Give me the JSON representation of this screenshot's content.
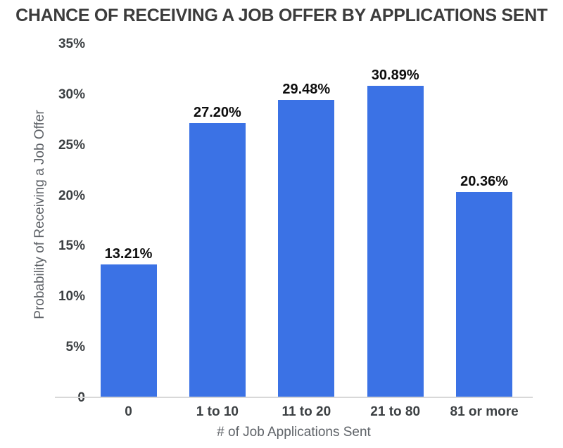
{
  "chart_data": {
    "type": "bar",
    "title": "CHANCE OF RECEIVING A JOB OFFER BY APPLICATIONS SENT",
    "categories": [
      "0",
      "1 to 10",
      "11 to 20",
      "21 to 80",
      "81 or more"
    ],
    "values": [
      13.21,
      27.2,
      29.48,
      30.89,
      20.36
    ],
    "value_labels": [
      "13.21%",
      "27.20%",
      "29.48%",
      "30.89%",
      "20.36%"
    ],
    "xlabel": "# of Job Applications Sent",
    "ylabel": "Probability of Receiving a Job Offer",
    "ylim": [
      0,
      35
    ],
    "yticks": [
      {
        "value": 0,
        "label": "0"
      },
      {
        "value": 5,
        "label": "5%"
      },
      {
        "value": 10,
        "label": "10%"
      },
      {
        "value": 15,
        "label": "15%"
      },
      {
        "value": 20,
        "label": "20%"
      },
      {
        "value": 25,
        "label": "25%"
      },
      {
        "value": 30,
        "label": "30%"
      },
      {
        "value": 35,
        "label": "35%"
      }
    ],
    "grid": false,
    "legend": "none",
    "colors": {
      "bar": "#3b72e5",
      "title_text": "#3c3c3c",
      "tick_text": "#3c4043",
      "axis_title_text": "#5f6368",
      "value_label_text": "#0d0d0d",
      "axis_line": "#d8d8d8",
      "background": "#ffffff"
    }
  }
}
